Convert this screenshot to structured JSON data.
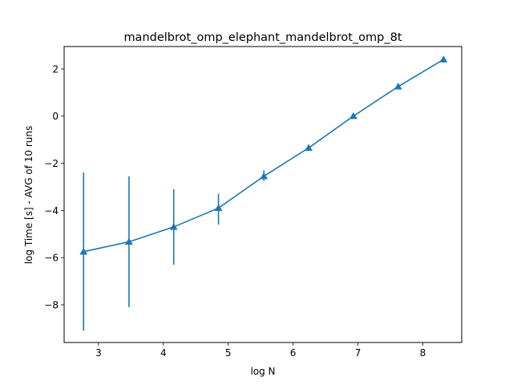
{
  "chart_data": {
    "type": "line",
    "title": "mandelbrot_omp_elephant_mandelbrot_omp_8t",
    "xlabel": "log N",
    "ylabel": "log Time  [s] - AVG of 10 runs",
    "xlim": [
      2.47,
      8.6
    ],
    "ylim": [
      -9.6,
      2.95
    ],
    "x_ticks": [
      3,
      4,
      5,
      6,
      7,
      8
    ],
    "y_ticks": [
      -8,
      -6,
      -4,
      -2,
      0,
      2
    ],
    "x_tick_labels": [
      "3",
      "4",
      "5",
      "6",
      "7",
      "8"
    ],
    "y_tick_labels": [
      "−8",
      "−6",
      "−4",
      "−2",
      "0",
      "2"
    ],
    "grid": false,
    "series": [
      {
        "color": "#1f77b4",
        "marker": "triangle",
        "x": [
          2.77,
          3.47,
          4.16,
          4.85,
          5.55,
          6.24,
          6.93,
          7.62,
          8.32
        ],
        "y": [
          -5.75,
          -5.33,
          -4.7,
          -3.9,
          -2.55,
          -1.35,
          0.0,
          1.25,
          2.4
        ],
        "yerr_low": [
          -9.1,
          -8.1,
          -6.3,
          -4.6,
          -2.75,
          -1.38,
          -0.03,
          1.22,
          2.37
        ],
        "yerr_high": [
          -2.4,
          -2.55,
          -3.1,
          -3.3,
          -2.3,
          -1.3,
          0.03,
          1.28,
          2.43
        ]
      }
    ]
  }
}
